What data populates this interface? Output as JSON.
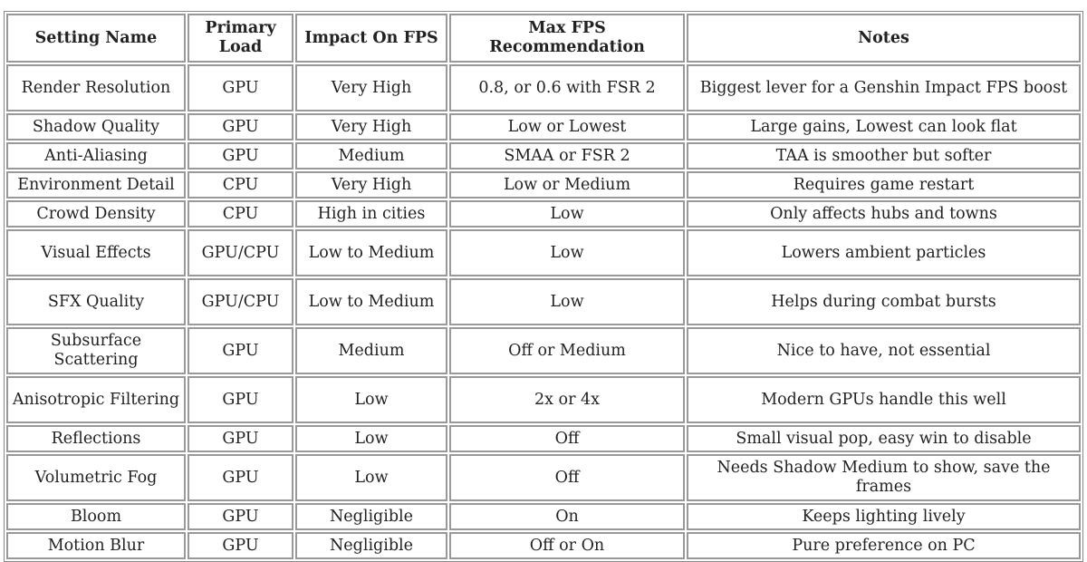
{
  "table": {
    "headers": [
      "Setting Name",
      "Primary Load",
      "Impact On FPS",
      "Max FPS Recommendation",
      "Notes"
    ],
    "rows": [
      [
        "Render Resolution",
        "GPU",
        "Very High",
        "0.8, or 0.6 with FSR 2",
        "Biggest lever for a Genshin Impact FPS boost"
      ],
      [
        "Shadow Quality",
        "GPU",
        "Very High",
        "Low or Lowest",
        "Large gains, Lowest can look flat"
      ],
      [
        "Anti-Aliasing",
        "GPU",
        "Medium",
        "SMAA or FSR 2",
        "TAA is smoother but softer"
      ],
      [
        "Environment Detail",
        "CPU",
        "Very High",
        "Low or Medium",
        "Requires game restart"
      ],
      [
        "Crowd Density",
        "CPU",
        "High in cities",
        "Low",
        "Only affects hubs and towns"
      ],
      [
        "Visual Effects",
        "GPU/CPU",
        "Low to Medium",
        "Low",
        "Lowers ambient particles"
      ],
      [
        "SFX Quality",
        "GPU/CPU",
        "Low to Medium",
        "Low",
        "Helps during combat bursts"
      ],
      [
        "Subsurface Scattering",
        "GPU",
        "Medium",
        "Off or Medium",
        "Nice to have, not essential"
      ],
      [
        "Anisotropic Filtering",
        "GPU",
        "Low",
        "2x or 4x",
        "Modern GPUs handle this well"
      ],
      [
        "Reflections",
        "GPU",
        "Low",
        "Off",
        "Small visual pop, easy win to disable"
      ],
      [
        "Volumetric Fog",
        "GPU",
        "Low",
        "Off",
        "Needs Shadow Medium to show, save the frames"
      ],
      [
        "Bloom",
        "GPU",
        "Negligible",
        "On",
        "Keeps lighting lively"
      ],
      [
        "Motion Blur",
        "GPU",
        "Negligible",
        "Off or On",
        "Pure preference on PC"
      ]
    ]
  }
}
